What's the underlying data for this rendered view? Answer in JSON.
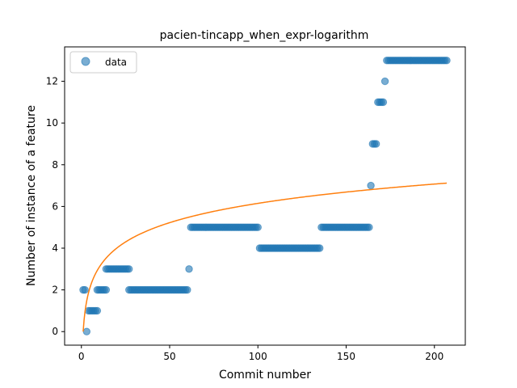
{
  "chart_data": {
    "type": "scatter",
    "title": "pacien-tincapp_when_expr-logarithm",
    "xlabel": "Commit number",
    "ylabel": "Number of instance of a feature",
    "xlim": [
      -9.5,
      217.5
    ],
    "ylim": [
      -0.65,
      13.65
    ],
    "xticks": [
      0,
      50,
      100,
      150,
      200
    ],
    "yticks": [
      0,
      2,
      4,
      6,
      8,
      10,
      12
    ],
    "grid": false,
    "legend": {
      "entries": [
        "data"
      ],
      "placement": "top-left"
    },
    "colors": {
      "data": "#1f77b4",
      "fit": "#ff7f0e"
    },
    "series": [
      {
        "name": "data",
        "kind": "scatter",
        "segments": [
          {
            "x_start": 1,
            "x_end": 2,
            "y": 2
          },
          {
            "x_start": 3,
            "x_end": 3,
            "y": 0
          },
          {
            "x_start": 4,
            "x_end": 9,
            "y": 1
          },
          {
            "x_start": 9,
            "x_end": 14,
            "y": 2
          },
          {
            "x_start": 14,
            "x_end": 27,
            "y": 3
          },
          {
            "x_start": 27,
            "x_end": 60,
            "y": 2
          },
          {
            "x_start": 61,
            "x_end": 61,
            "y": 3
          },
          {
            "x_start": 62,
            "x_end": 100,
            "y": 5
          },
          {
            "x_start": 101,
            "x_end": 135,
            "y": 4
          },
          {
            "x_start": 136,
            "x_end": 163,
            "y": 5
          },
          {
            "x_start": 164,
            "x_end": 164,
            "y": 7
          },
          {
            "x_start": 165,
            "x_end": 167,
            "y": 9
          },
          {
            "x_start": 168,
            "x_end": 171,
            "y": 11
          },
          {
            "x_start": 172,
            "x_end": 172,
            "y": 12
          },
          {
            "x_start": 173,
            "x_end": 207,
            "y": 13
          }
        ]
      },
      {
        "kind": "line",
        "model": "logarithm",
        "a": 0.0,
        "b": 1.335,
        "x_range": [
          1,
          207
        ]
      }
    ]
  }
}
